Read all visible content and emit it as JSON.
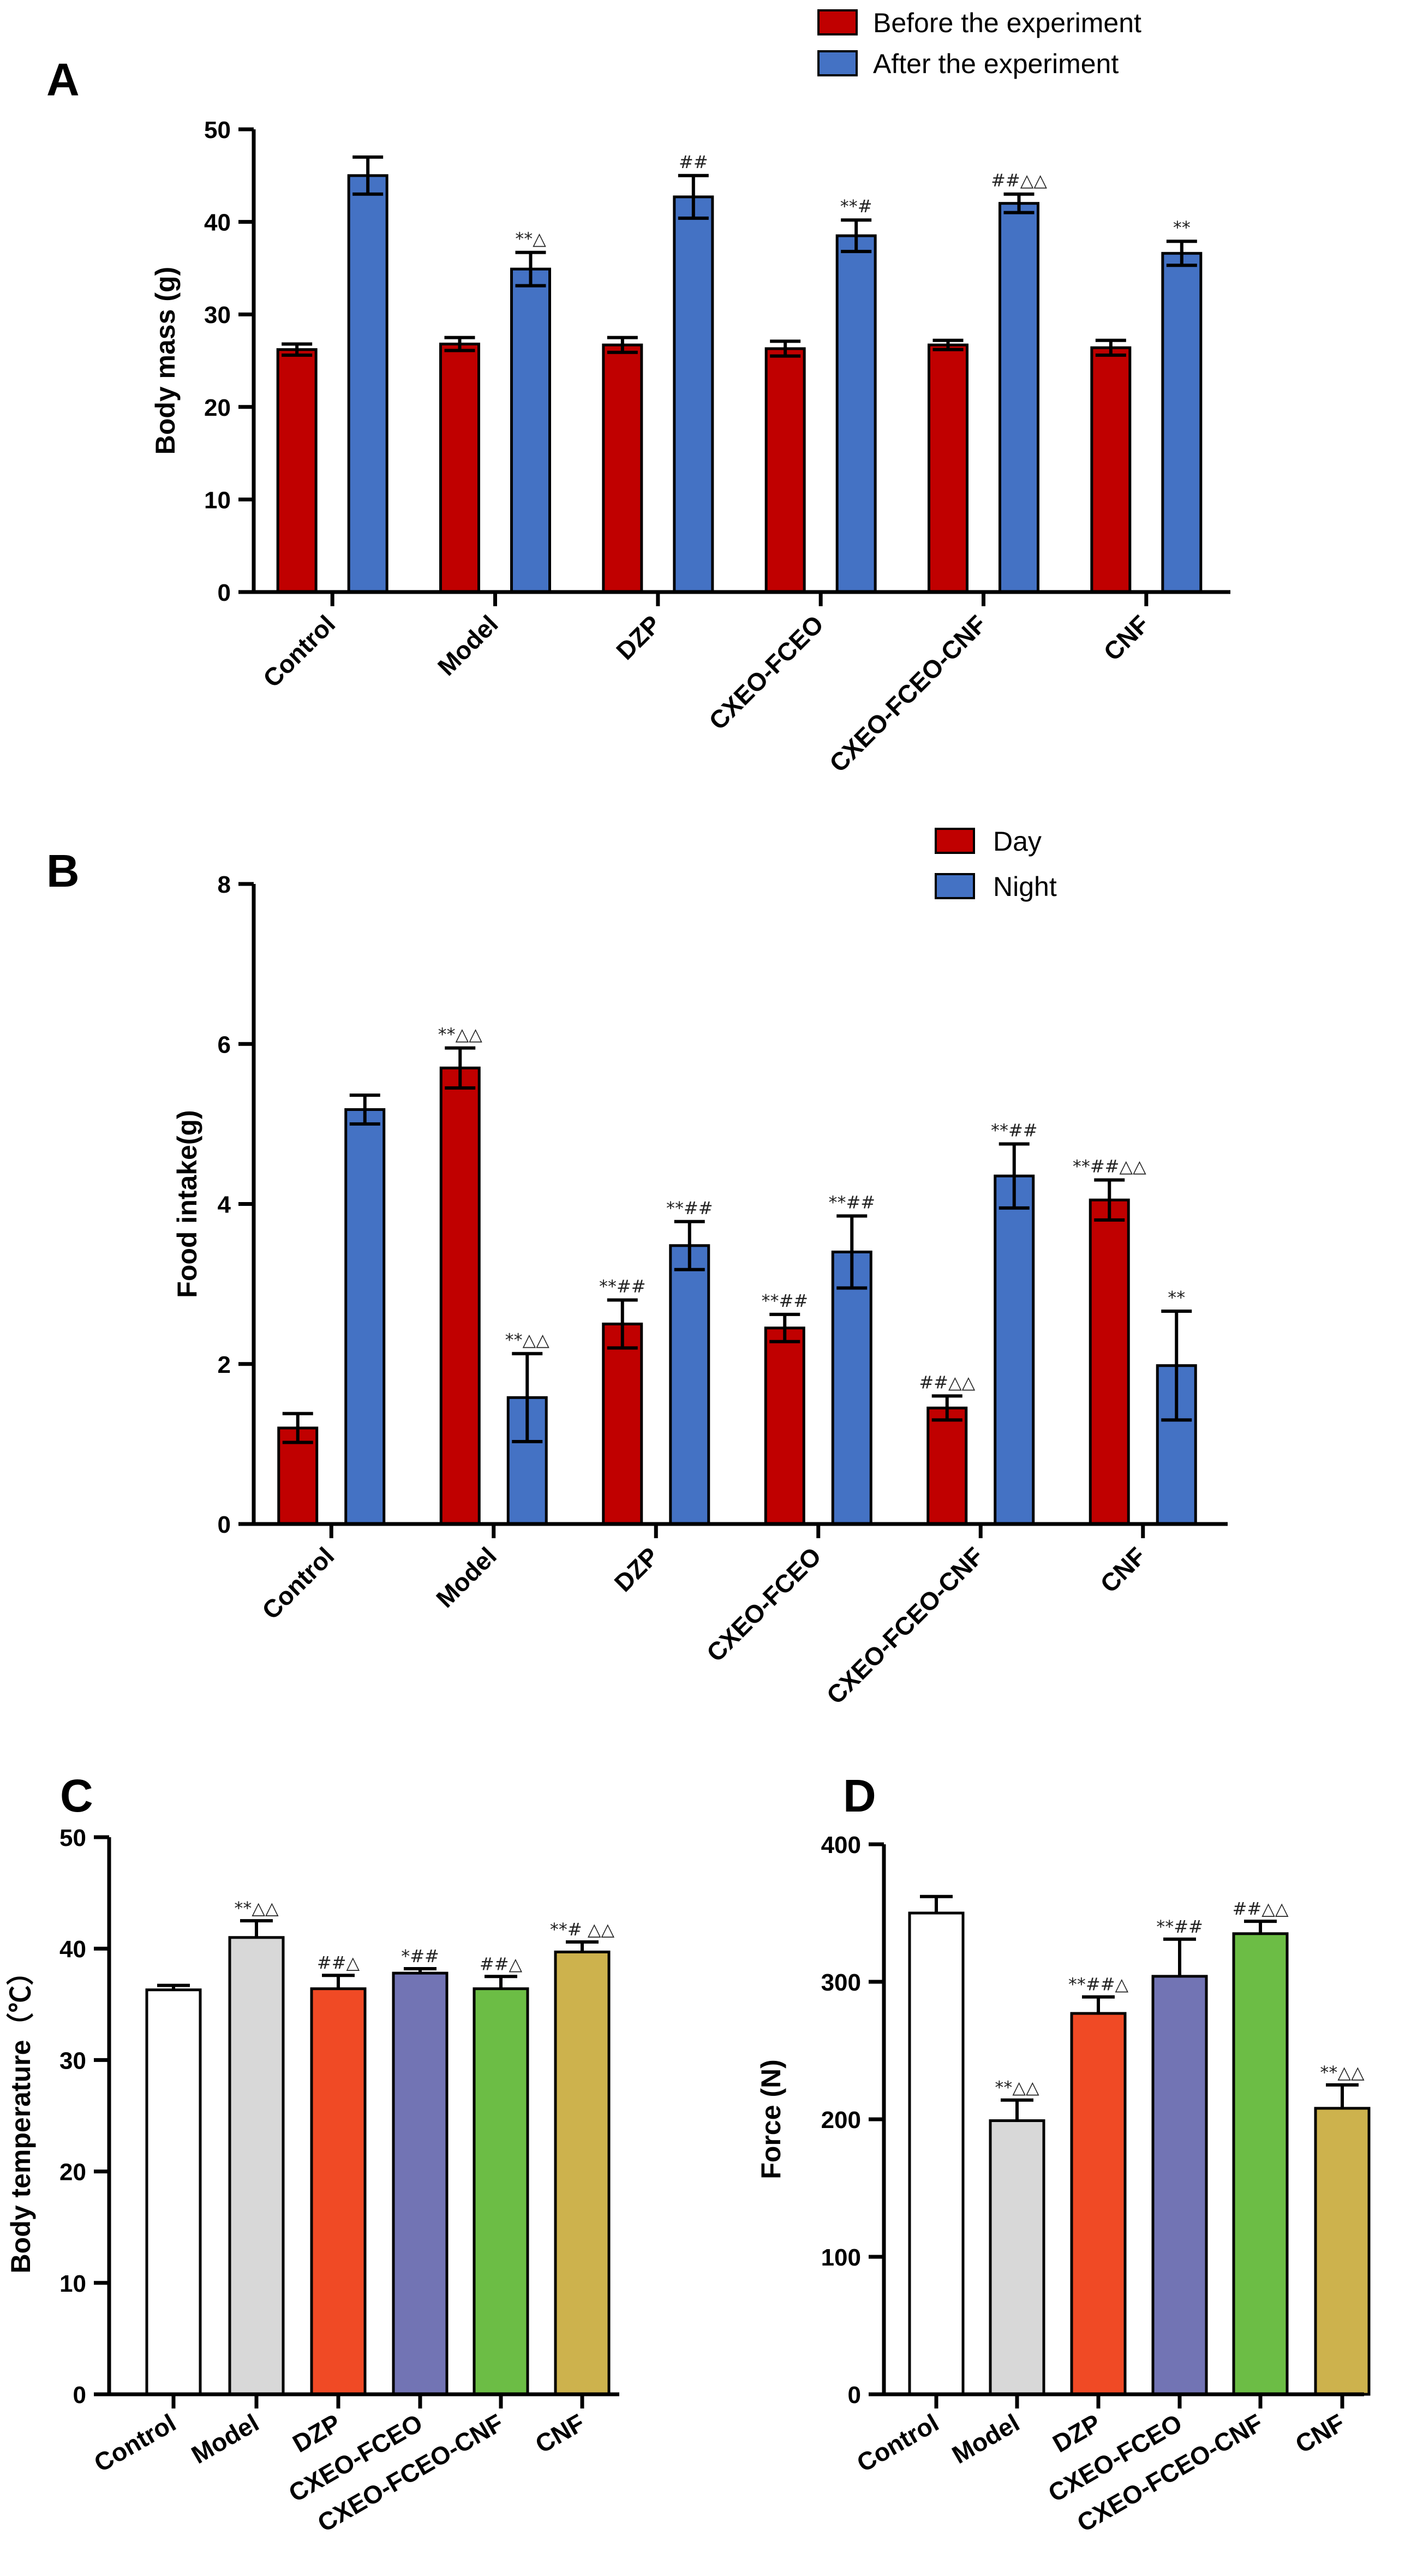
{
  "chart_data": [
    {
      "panel": "A",
      "type": "bar",
      "title": "",
      "xlabel": "",
      "ylabel": "Body mass (g)",
      "ylim": [
        0,
        50
      ],
      "yticks": [
        "0",
        "10",
        "20",
        "30",
        "40",
        "50"
      ],
      "legend_position": "top-right",
      "categories": [
        "Control",
        "Model",
        "DZP",
        "CXEO-FCEO",
        "CXEO-FCEO-CNF",
        "CNF"
      ],
      "series": [
        {
          "name": "Before the experiment",
          "color": "#c00000",
          "values": [
            26.2,
            26.8,
            26.7,
            26.3,
            26.7,
            26.4
          ],
          "errors": [
            0.6,
            0.7,
            0.8,
            0.8,
            0.5,
            0.8
          ],
          "annotations": [
            "",
            "",
            "",
            "",
            "",
            ""
          ]
        },
        {
          "name": "After the experiment",
          "color": "#4472c4",
          "values": [
            45.0,
            34.9,
            42.7,
            38.5,
            42.0,
            36.6
          ],
          "errors": [
            2.0,
            1.8,
            2.3,
            1.7,
            1.0,
            1.3
          ],
          "annotations": [
            "",
            "**△",
            "##",
            "**#",
            "##△△",
            "**"
          ]
        }
      ]
    },
    {
      "panel": "B",
      "type": "bar",
      "title": "",
      "xlabel": "",
      "ylabel": "Food intake(g)",
      "ylim": [
        0,
        8
      ],
      "yticks": [
        "0",
        "2",
        "4",
        "6",
        "8"
      ],
      "legend_position": "top-right",
      "categories": [
        "Control",
        "Model",
        "DZP",
        "CXEO-FCEO",
        "CXEO-FCEO-CNF",
        "CNF"
      ],
      "series": [
        {
          "name": "Day",
          "color": "#c00000",
          "values": [
            1.2,
            5.7,
            2.5,
            2.45,
            1.45,
            4.05
          ],
          "errors": [
            0.18,
            0.25,
            0.3,
            0.17,
            0.15,
            0.25
          ],
          "annotations": [
            "",
            "**△△",
            "**##",
            "**##",
            "##△△",
            "**##△△"
          ]
        },
        {
          "name": "Night",
          "color": "#4472c4",
          "values": [
            5.18,
            1.58,
            3.48,
            3.4,
            4.35,
            1.98
          ],
          "errors": [
            0.18,
            0.55,
            0.3,
            0.45,
            0.4,
            0.68
          ],
          "annotations": [
            "",
            "**△△",
            "**##",
            "**##",
            "**##",
            "**"
          ]
        }
      ]
    },
    {
      "panel": "C",
      "type": "bar",
      "title": "",
      "xlabel": "",
      "ylabel": "Body temperature（℃）",
      "ylim": [
        0,
        50
      ],
      "yticks": [
        "0",
        "10",
        "20",
        "30",
        "40",
        "50"
      ],
      "categories": [
        "Control",
        "Model",
        "DZP",
        "CXEO-FCEO",
        "CXEO-FCEO-CNF",
        "CNF"
      ],
      "colors": [
        "#ffffff",
        "#d8d8d8",
        "#f04a25",
        "#7274b4",
        "#6cbd45",
        "#cdb24d"
      ],
      "values": [
        36.3,
        41.0,
        36.4,
        37.8,
        36.4,
        39.7
      ],
      "errors": [
        0.4,
        1.5,
        1.2,
        0.4,
        1.1,
        0.9
      ],
      "annotations": [
        "",
        "**△△",
        "##△",
        "*##",
        "##△",
        "**# △△"
      ]
    },
    {
      "panel": "D",
      "type": "bar",
      "title": "",
      "xlabel": "",
      "ylabel": "Force (N)",
      "ylim": [
        0,
        400
      ],
      "yticks": [
        "0",
        "100",
        "200",
        "300",
        "400"
      ],
      "categories": [
        "Control",
        "Model",
        "DZP",
        "CXEO-FCEO",
        "CXEO-FCEO-CNF",
        "CNF"
      ],
      "colors": [
        "#ffffff",
        "#d8d8d8",
        "#f04a25",
        "#7274b4",
        "#6cbd45",
        "#cdb24d"
      ],
      "values": [
        350,
        199,
        277,
        304,
        335,
        208
      ],
      "errors": [
        12,
        15,
        12,
        27,
        9,
        17
      ],
      "annotations": [
        "",
        "**△△",
        "**##△",
        "**##",
        "##△△",
        "**△△"
      ]
    }
  ]
}
